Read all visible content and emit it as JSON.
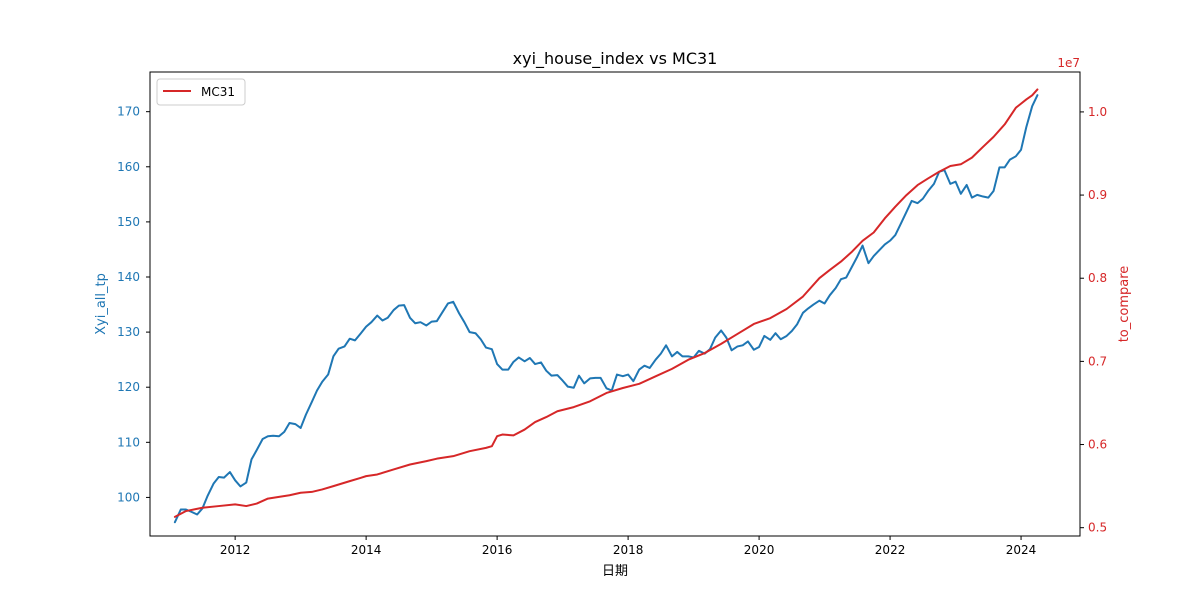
{
  "chart_data": {
    "type": "line",
    "title": "xyi_house_index vs MC31",
    "xlabel": "日期",
    "ylabel_left": "Xyi_all_tp",
    "ylabel_right": "to_compare",
    "right_axis_offset_text": "1e7",
    "xlim": [
      2010.7,
      2024.9
    ],
    "ylim_left": [
      93,
      177.2
    ],
    "ylim_right": [
      0.49,
      1.048
    ],
    "x_ticks": [
      2012,
      2014,
      2016,
      2018,
      2020,
      2022,
      2024
    ],
    "y_left_ticks": [
      100,
      110,
      120,
      130,
      140,
      150,
      160,
      170
    ],
    "y_right_ticks": [
      0.5,
      0.6,
      0.7,
      0.8,
      0.9,
      1.0
    ],
    "y_right_tick_labels": [
      "0.5",
      "0.6",
      "0.7",
      "0.8",
      "0.9",
      "1.0"
    ],
    "grid": false,
    "legend": {
      "position": "top-left",
      "entries": [
        "MC31"
      ]
    },
    "colors": {
      "left_series": "#1f77b4",
      "right_series": "#d62728",
      "axes": "#000000"
    },
    "series": [
      {
        "key": "xyi",
        "axis": "left",
        "x": [
          2011.08,
          2011.17,
          2011.25,
          2011.33,
          2011.42,
          2011.5,
          2011.58,
          2011.67,
          2011.75,
          2011.83,
          2011.92,
          2012.0,
          2012.08,
          2012.17,
          2012.25,
          2012.33,
          2012.42,
          2012.5,
          2012.58,
          2012.67,
          2012.75,
          2012.83,
          2012.92,
          2013.0,
          2013.08,
          2013.17,
          2013.25,
          2013.33,
          2013.42,
          2013.5,
          2013.58,
          2013.67,
          2013.75,
          2013.83,
          2013.92,
          2014.0,
          2014.08,
          2014.17,
          2014.25,
          2014.33,
          2014.42,
          2014.5,
          2014.58,
          2014.67,
          2014.75,
          2014.83,
          2014.92,
          2015.0,
          2015.08,
          2015.17,
          2015.25,
          2015.33,
          2015.42,
          2015.5,
          2015.58,
          2015.67,
          2015.75,
          2015.83,
          2015.92,
          2016.0,
          2016.08,
          2016.17,
          2016.25,
          2016.33,
          2016.42,
          2016.5,
          2016.58,
          2016.67,
          2016.75,
          2016.83,
          2016.92,
          2017.0,
          2017.08,
          2017.17,
          2017.25,
          2017.33,
          2017.42,
          2017.5,
          2017.58,
          2017.67,
          2017.75,
          2017.83,
          2017.92,
          2018.0,
          2018.08,
          2018.17,
          2018.25,
          2018.33,
          2018.42,
          2018.5,
          2018.58,
          2018.67,
          2018.75,
          2018.83,
          2018.92,
          2019.0,
          2019.08,
          2019.17,
          2019.25,
          2019.33,
          2019.42,
          2019.5,
          2019.58,
          2019.67,
          2019.75,
          2019.83,
          2019.92,
          2020.0,
          2020.08,
          2020.17,
          2020.25,
          2020.33,
          2020.42,
          2020.5,
          2020.58,
          2020.67,
          2020.75,
          2020.83,
          2020.92,
          2021.0,
          2021.08,
          2021.17,
          2021.25,
          2021.33,
          2021.42,
          2021.5,
          2021.58,
          2021.67,
          2021.75,
          2021.83,
          2021.92,
          2022.0,
          2022.08,
          2022.17,
          2022.25,
          2022.33,
          2022.42,
          2022.5,
          2022.58,
          2022.67,
          2022.75,
          2022.83,
          2022.92,
          2023.0,
          2023.08,
          2023.17,
          2023.25,
          2023.33,
          2023.42,
          2023.5,
          2023.58,
          2023.67,
          2023.75,
          2023.83,
          2023.92,
          2024.0,
          2024.08,
          2024.17,
          2024.25
        ],
        "y": [
          95.5,
          97.8,
          97.8,
          97.4,
          96.9,
          98.0,
          100.3,
          102.5,
          103.7,
          103.6,
          104.6,
          103.1,
          102.0,
          102.7,
          106.9,
          108.6,
          110.6,
          111.1,
          111.2,
          111.1,
          111.9,
          113.5,
          113.3,
          112.6,
          115.0,
          117.3,
          119.4,
          121.0,
          122.3,
          125.6,
          127.0,
          127.4,
          128.8,
          128.5,
          129.8,
          131.0,
          131.8,
          133.0,
          132.1,
          132.6,
          134.0,
          134.8,
          134.9,
          132.6,
          131.6,
          131.8,
          131.2,
          131.9,
          132.0,
          133.7,
          135.2,
          135.5,
          133.4,
          131.8,
          130.0,
          129.8,
          128.7,
          127.2,
          126.9,
          124.2,
          123.2,
          123.2,
          124.6,
          125.4,
          124.7,
          125.3,
          124.2,
          124.5,
          123.0,
          122.1,
          122.2,
          121.2,
          120.1,
          119.9,
          122.1,
          120.7,
          121.6,
          121.7,
          121.7,
          119.8,
          119.4,
          122.3,
          122.0,
          122.3,
          121.1,
          123.2,
          123.9,
          123.5,
          125.0,
          126.1,
          127.6,
          125.6,
          126.4,
          125.6,
          125.6,
          125.4,
          126.6,
          126.1,
          126.9,
          129.0,
          130.3,
          129.0,
          126.7,
          127.4,
          127.6,
          128.3,
          126.8,
          127.3,
          129.3,
          128.6,
          129.8,
          128.7,
          129.3,
          130.2,
          131.4,
          133.5,
          134.3,
          135.0,
          135.7,
          135.2,
          136.7,
          138.0,
          139.6,
          139.9,
          141.9,
          143.7,
          145.7,
          142.5,
          143.8,
          144.8,
          145.9,
          146.6,
          147.6,
          149.8,
          151.8,
          153.8,
          153.4,
          154.2,
          155.6,
          156.9,
          159.1,
          159.4,
          156.9,
          157.3,
          155.1,
          156.7,
          154.4,
          154.9,
          154.6,
          154.4,
          155.6,
          159.9,
          159.9,
          161.3,
          161.9,
          163.1,
          167.2,
          171.0,
          173.0
        ]
      },
      {
        "key": "mc31",
        "axis": "right",
        "name": "MC31",
        "x": [
          2011.08,
          2011.25,
          2011.5,
          2011.75,
          2012.0,
          2012.17,
          2012.33,
          2012.5,
          2012.67,
          2012.83,
          2013.0,
          2013.17,
          2013.33,
          2013.5,
          2013.75,
          2013.92,
          2014.0,
          2014.17,
          2014.42,
          2014.67,
          2014.92,
          2015.08,
          2015.33,
          2015.58,
          2015.83,
          2015.92,
          2016.0,
          2016.08,
          2016.25,
          2016.42,
          2016.58,
          2016.75,
          2016.92,
          2017.17,
          2017.42,
          2017.67,
          2017.92,
          2018.17,
          2018.42,
          2018.67,
          2018.92,
          2019.17,
          2019.42,
          2019.67,
          2019.92,
          2020.17,
          2020.42,
          2020.67,
          2020.92,
          2021.08,
          2021.25,
          2021.42,
          2021.58,
          2021.75,
          2021.92,
          2022.08,
          2022.25,
          2022.42,
          2022.58,
          2022.75,
          2022.92,
          2023.08,
          2023.25,
          2023.42,
          2023.58,
          2023.75,
          2023.92,
          2024.0,
          2024.08,
          2024.17,
          2024.25
        ],
        "y": [
          0.513,
          0.52,
          0.524,
          0.526,
          0.528,
          0.526,
          0.529,
          0.535,
          0.537,
          0.539,
          0.542,
          0.543,
          0.546,
          0.55,
          0.556,
          0.56,
          0.562,
          0.564,
          0.57,
          0.576,
          0.58,
          0.583,
          0.586,
          0.592,
          0.596,
          0.598,
          0.61,
          0.612,
          0.611,
          0.618,
          0.627,
          0.633,
          0.64,
          0.645,
          0.652,
          0.662,
          0.668,
          0.673,
          0.682,
          0.691,
          0.702,
          0.71,
          0.721,
          0.733,
          0.745,
          0.752,
          0.763,
          0.778,
          0.8,
          0.81,
          0.82,
          0.832,
          0.845,
          0.855,
          0.872,
          0.886,
          0.9,
          0.912,
          0.92,
          0.928,
          0.935,
          0.937,
          0.945,
          0.958,
          0.97,
          0.985,
          1.005,
          1.01,
          1.015,
          1.02,
          1.027
        ]
      }
    ]
  }
}
